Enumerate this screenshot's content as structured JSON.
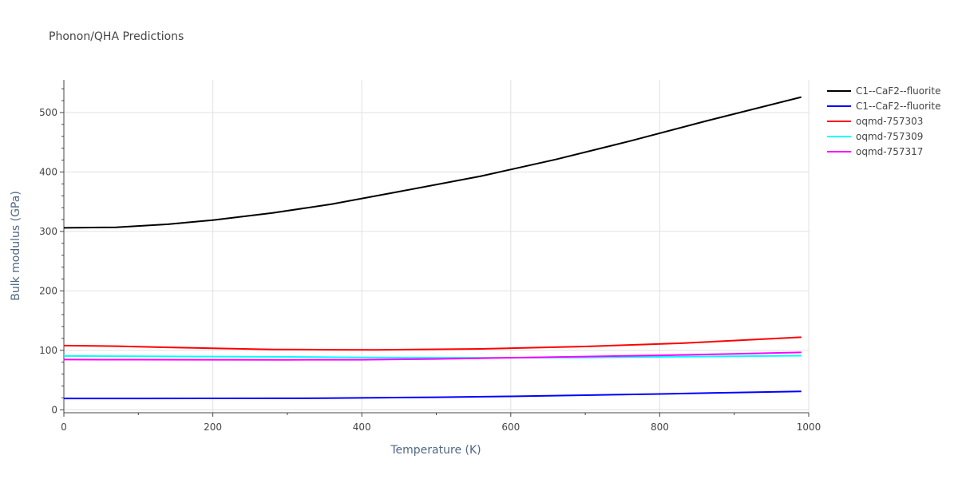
{
  "chart_data": {
    "type": "line",
    "title": "Phonon/QHA Predictions",
    "xlabel": "Temperature (K)",
    "ylabel": "Bulk modulus (GPa)",
    "xlim": [
      0,
      1000
    ],
    "ylim": [
      -5,
      555
    ],
    "xticks": [
      0,
      200,
      400,
      600,
      800,
      1000
    ],
    "yticks": [
      0,
      100,
      200,
      300,
      400,
      500
    ],
    "grid": true,
    "legend_position": "top-right",
    "series": [
      {
        "name": "C1--CaF2--fluorite",
        "color": "#000000",
        "x": [
          0,
          70,
          140,
          200,
          280,
          360,
          450,
          560,
          660,
          760,
          860,
          990
        ],
        "y": [
          306,
          307,
          312,
          319,
          331,
          346,
          367,
          393,
          421,
          452,
          485,
          526
        ]
      },
      {
        "name": "C1--CaF2--fluorite",
        "color": "#0000ff",
        "x": [
          0,
          100,
          200,
          350,
          500,
          600,
          700,
          800,
          900,
          990
        ],
        "y": [
          19,
          19,
          19.2,
          19.5,
          21,
          22.5,
          24.5,
          26.5,
          29,
          31
        ]
      },
      {
        "name": "oqmd-757303",
        "color": "#ff0000",
        "x": [
          0,
          70,
          140,
          200,
          280,
          360,
          420,
          560,
          700,
          830,
          990
        ],
        "y": [
          108,
          107,
          105,
          103.5,
          101.5,
          101,
          100.8,
          102.5,
          106.5,
          112,
          122
        ]
      },
      {
        "name": "oqmd-757309",
        "color": "#00ffff",
        "x": [
          0,
          100,
          200,
          300,
          400,
          500,
          600,
          700,
          800,
          900,
          990
        ],
        "y": [
          90.5,
          90,
          89.5,
          89,
          88,
          87.5,
          87.5,
          88,
          89,
          90,
          91
        ]
      },
      {
        "name": "oqmd-757317",
        "color": "#ff00ff",
        "x": [
          0,
          100,
          200,
          300,
          400,
          500,
          600,
          700,
          800,
          900,
          990
        ],
        "y": [
          84.5,
          84.3,
          84.2,
          84,
          84.2,
          85.5,
          87.5,
          89.5,
          91.5,
          94,
          96.5
        ]
      }
    ]
  }
}
